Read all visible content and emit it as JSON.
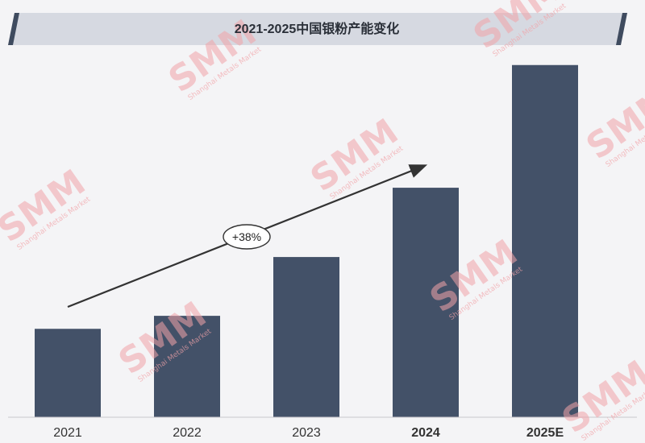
{
  "chart_data": {
    "type": "bar",
    "title": "2021-2025中国银粉产能变化",
    "categories": [
      "2021",
      "2022",
      "2023",
      "2024",
      "2025E"
    ],
    "bold_categories": [
      "2024",
      "2025E"
    ],
    "values": [
      24.5,
      28.1,
      44.4,
      63.6,
      97.6
    ],
    "ylim": [
      0,
      100
    ],
    "bar_color": "#435168",
    "annotation": {
      "label": "+38%",
      "type": "trend-arrow"
    },
    "grid": false,
    "legend": "none"
  },
  "colors": {
    "banner_fill": "#d6d9e1",
    "banner_edge": "#3f4b5f",
    "watermark": "#f2a3a8"
  },
  "watermark": {
    "brand": "SMM",
    "tagline": "Shanghai Metals Market"
  }
}
